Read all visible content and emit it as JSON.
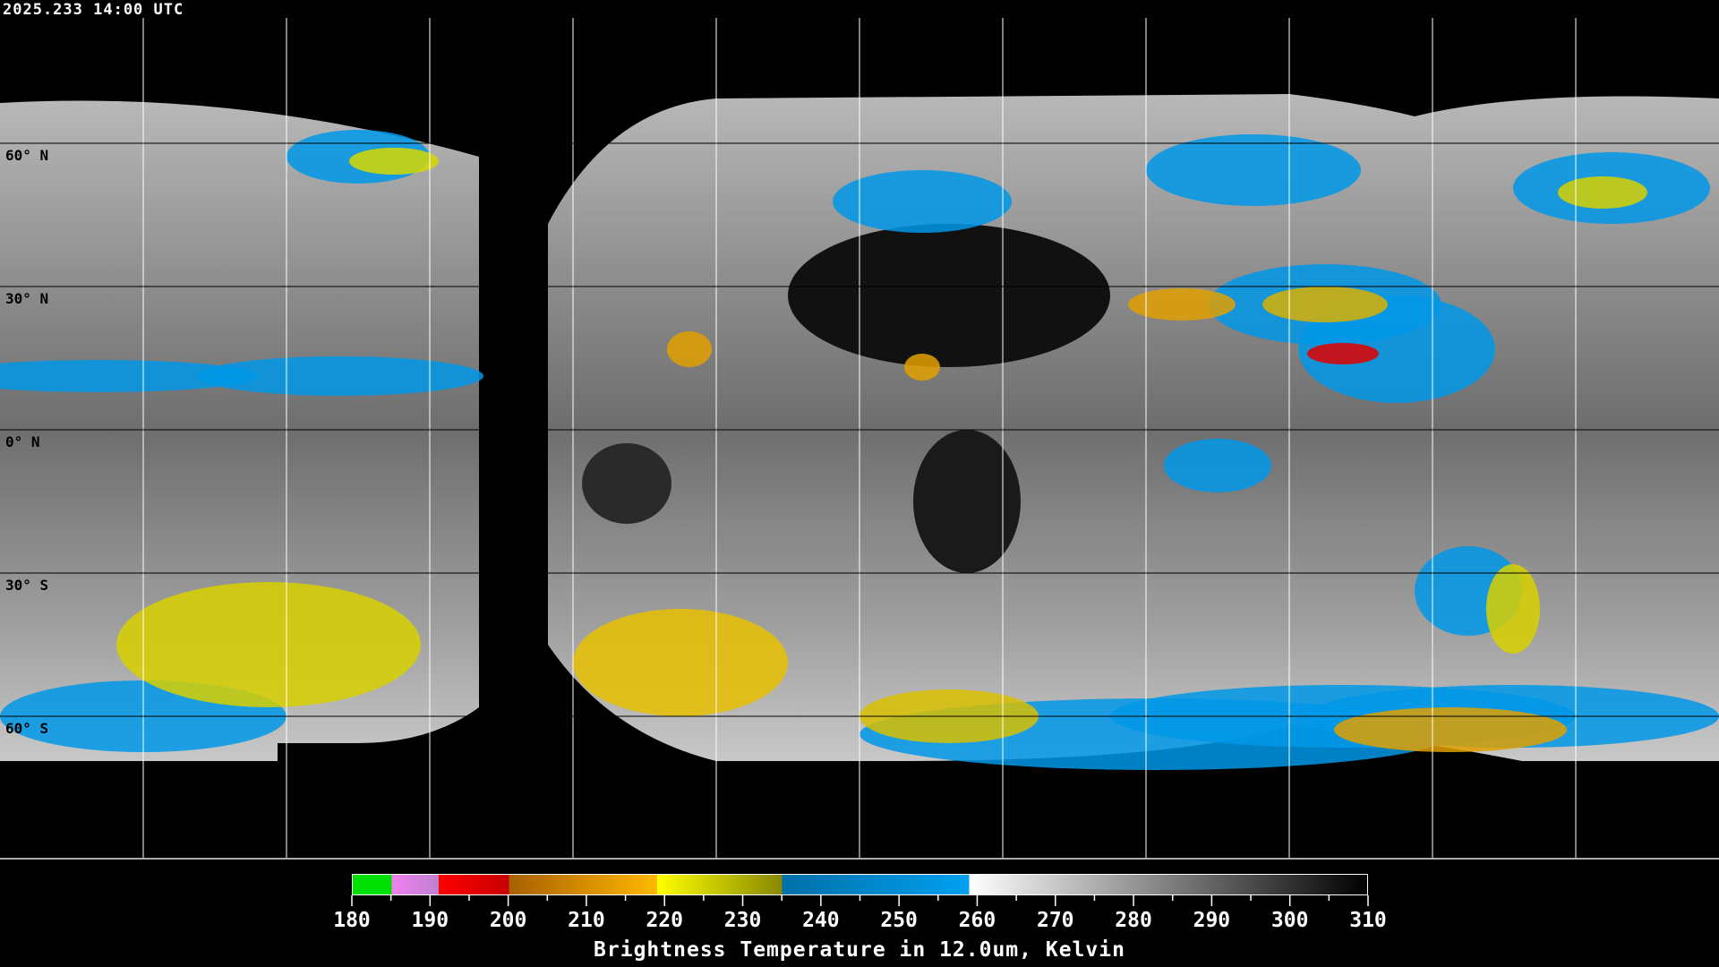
{
  "timestamp": "2025.233 14:00 UTC",
  "lat_labels": [
    "60° N",
    "30° N",
    "0° N",
    "30° S",
    "60° S"
  ],
  "colorbar": {
    "title": "Brightness Temperature in 12.0um, Kelvin",
    "range": [
      180,
      310
    ],
    "tick_labels": [
      "180",
      "190",
      "200",
      "210",
      "220",
      "230",
      "240",
      "250",
      "260",
      "270",
      "280",
      "290",
      "300",
      "310"
    ],
    "segments": [
      {
        "from": 180,
        "to": 185,
        "colors": [
          "#00e000",
          "#00e000"
        ]
      },
      {
        "from": 185,
        "to": 191,
        "colors": [
          "#f080f0",
          "#c080d0"
        ]
      },
      {
        "from": 191,
        "to": 200,
        "colors": [
          "#ff0000",
          "#c80000"
        ]
      },
      {
        "from": 200,
        "to": 219,
        "colors": [
          "#a86000",
          "#ffb800"
        ]
      },
      {
        "from": 219,
        "to": 235,
        "colors": [
          "#ffff00",
          "#888800"
        ]
      },
      {
        "from": 235,
        "to": 259,
        "colors": [
          "#0070a8",
          "#00a0f0"
        ]
      },
      {
        "from": 259,
        "to": 310,
        "colors": [
          "#ffffff",
          "#000000"
        ]
      }
    ]
  }
}
